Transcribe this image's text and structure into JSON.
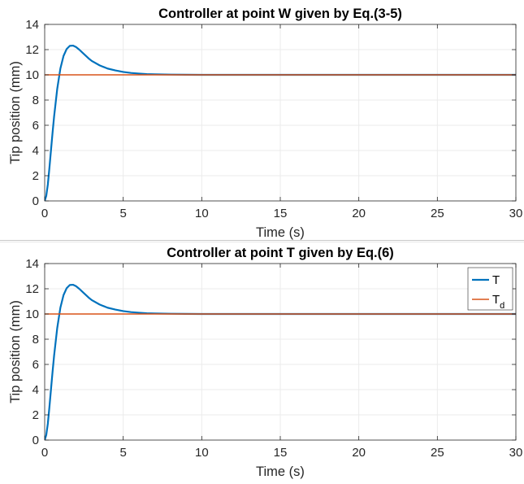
{
  "chart_data": [
    {
      "type": "line",
      "title": "Controller at point W given by Eq.(3-5)",
      "xlabel": "Time (s)",
      "ylabel": "Tip position (mm)",
      "xlim": [
        0,
        30
      ],
      "ylim": [
        0,
        14
      ],
      "xticks": [
        "0",
        "5",
        "10",
        "15",
        "20",
        "25",
        "30"
      ],
      "yticks": [
        "0",
        "2",
        "4",
        "6",
        "8",
        "10",
        "12",
        "14"
      ],
      "grid": true,
      "legend": null,
      "series": [
        {
          "color": "#0072BD",
          "x": [
            0,
            0.1,
            0.2,
            0.3,
            0.4,
            0.5,
            0.6,
            0.8,
            1.0,
            1.2,
            1.4,
            1.6,
            1.8,
            2.0,
            2.2,
            2.5,
            2.8,
            3.0,
            3.5,
            4.0,
            4.5,
            5.0,
            5.5,
            6.0,
            6.5,
            7.0,
            8.0,
            9.0,
            10.0,
            12.0,
            15.0,
            20.0,
            25.0,
            30.0
          ],
          "y": [
            0,
            0.4,
            1.3,
            2.6,
            4.0,
            5.4,
            6.7,
            8.9,
            10.5,
            11.5,
            12.05,
            12.3,
            12.32,
            12.2,
            12.0,
            11.65,
            11.3,
            11.1,
            10.75,
            10.5,
            10.35,
            10.23,
            10.15,
            10.1,
            10.06,
            10.04,
            10.02,
            10.01,
            10.0,
            10.0,
            10.0,
            10.0,
            10.0,
            10.0
          ]
        },
        {
          "color": "#D95319",
          "x": [
            0,
            30
          ],
          "y": [
            10,
            10
          ]
        }
      ]
    },
    {
      "type": "line",
      "title": "Controller at point T given by Eq.(6)",
      "xlabel": "Time (s)",
      "ylabel": "Tip position (mm)",
      "xlim": [
        0,
        30
      ],
      "ylim": [
        0,
        14
      ],
      "xticks": [
        "0",
        "5",
        "10",
        "15",
        "20",
        "25",
        "30"
      ],
      "yticks": [
        "0",
        "2",
        "4",
        "6",
        "8",
        "10",
        "12",
        "14"
      ],
      "grid": true,
      "legend": "top-right",
      "series": [
        {
          "name": "T",
          "color": "#0072BD",
          "x": [
            0,
            0.1,
            0.2,
            0.3,
            0.4,
            0.5,
            0.6,
            0.8,
            1.0,
            1.2,
            1.4,
            1.6,
            1.8,
            2.0,
            2.2,
            2.5,
            2.8,
            3.0,
            3.5,
            4.0,
            4.5,
            5.0,
            5.5,
            6.0,
            6.5,
            7.0,
            8.0,
            9.0,
            10.0,
            12.0,
            15.0,
            20.0,
            25.0,
            30.0
          ],
          "y": [
            0,
            0.4,
            1.3,
            2.6,
            4.0,
            5.4,
            6.7,
            8.9,
            10.5,
            11.5,
            12.05,
            12.3,
            12.32,
            12.2,
            12.0,
            11.65,
            11.3,
            11.1,
            10.75,
            10.5,
            10.35,
            10.23,
            10.15,
            10.1,
            10.06,
            10.04,
            10.02,
            10.01,
            10.0,
            10.0,
            10.0,
            10.0,
            10.0,
            10.0
          ]
        },
        {
          "name": "T",
          "name_subscript": "d",
          "color": "#D95319",
          "x": [
            0,
            30
          ],
          "y": [
            10,
            10
          ]
        }
      ]
    }
  ]
}
